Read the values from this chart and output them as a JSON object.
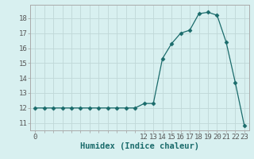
{
  "x": [
    0,
    1,
    2,
    3,
    4,
    5,
    6,
    7,
    8,
    9,
    10,
    11,
    12,
    13,
    14,
    15,
    16,
    17,
    18,
    19,
    20,
    21,
    22,
    23
  ],
  "y": [
    12.0,
    12.0,
    12.0,
    12.0,
    12.0,
    12.0,
    12.0,
    12.0,
    12.0,
    12.0,
    12.0,
    12.0,
    12.3,
    12.3,
    15.3,
    16.3,
    17.0,
    17.2,
    18.3,
    18.4,
    18.2,
    16.4,
    13.7,
    10.8
  ],
  "line_color": "#1a6b6b",
  "marker": "D",
  "markersize": 2.5,
  "bg_color": "#d8f0f0",
  "grid_color": "#c0d8d8",
  "xlabel": "Humidex (Indice chaleur)",
  "xlabel_fontsize": 7.5,
  "xtick_labels": [
    "0",
    "",
    "",
    "",
    "",
    "",
    "",
    "",
    "",
    "",
    "",
    "",
    "12",
    "13",
    "14",
    "15",
    "16",
    "17",
    "18",
    "19",
    "20",
    "21",
    "22",
    "23"
  ],
  "yticks": [
    11,
    12,
    13,
    14,
    15,
    16,
    17,
    18
  ],
  "ylim": [
    10.5,
    18.9
  ],
  "xlim": [
    -0.5,
    23.5
  ],
  "tick_fontsize": 6.5,
  "spine_color": "#aaaaaa",
  "tick_color": "#555555"
}
